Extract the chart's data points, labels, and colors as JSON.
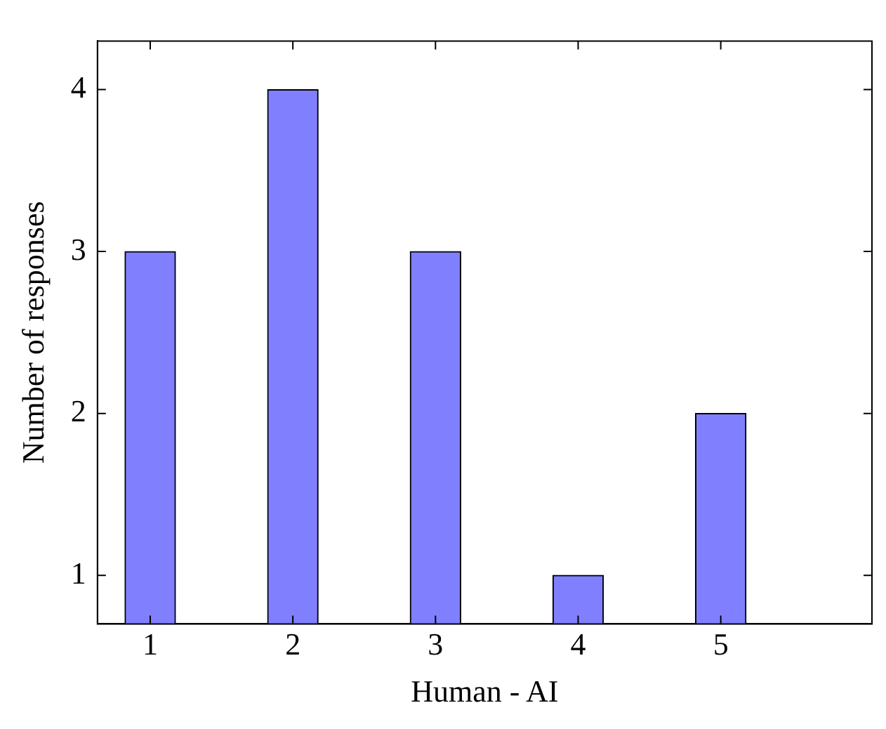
{
  "chart_data": {
    "type": "bar",
    "xlabel": "Human - AI",
    "ylabel": "Number of responses",
    "x": [
      1,
      2,
      3,
      4,
      5
    ],
    "values": [
      3,
      4,
      3,
      1,
      2
    ],
    "color": "#8080ff",
    "xlim": [
      0.63,
      6.06
    ],
    "xticks": [
      1,
      2,
      3,
      4,
      5
    ],
    "ylim": [
      0.7,
      4.3
    ],
    "yticks": [
      1,
      2,
      3,
      4
    ]
  }
}
